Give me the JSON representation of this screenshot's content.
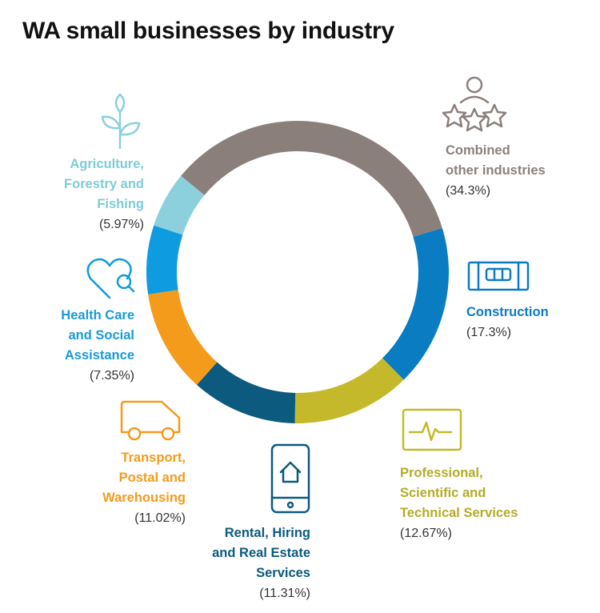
{
  "chart_data": {
    "type": "donut",
    "title": "WA small businesses by industry",
    "categories": [
      [
        "Combined",
        "other industries"
      ],
      [
        "Construction"
      ],
      [
        "Professional,",
        "Scientific and",
        "Technical Services"
      ],
      [
        "Rental, Hiring",
        "and Real Estate",
        "Services"
      ],
      [
        "Transport,",
        "Postal and",
        "Warehousing"
      ],
      [
        "Health Care",
        "and Social",
        "Assistance"
      ],
      [
        "Agriculture,",
        "Forestry and",
        "Fishing"
      ]
    ],
    "values": [
      34.3,
      17.3,
      12.67,
      11.31,
      11.02,
      7.35,
      5.97
    ],
    "value_labels": [
      "(34.3%)",
      "(17.3%)",
      "(12.67%)",
      "(11.31%)",
      "(11.02%)",
      "(7.35%)",
      "(5.97%)"
    ],
    "colors": [
      "#8b7f7b",
      "#0a7cc2",
      "#c4b92a",
      "#0c5a7e",
      "#f49b1c",
      "#0e9be0",
      "#8bd0dc"
    ],
    "label_colors": [
      "#8b7f7b",
      "#0a7cc2",
      "#b5ab27",
      "#0c5a7e",
      "#f49b1c",
      "#1a9ad6",
      "#7ecbd8"
    ]
  }
}
